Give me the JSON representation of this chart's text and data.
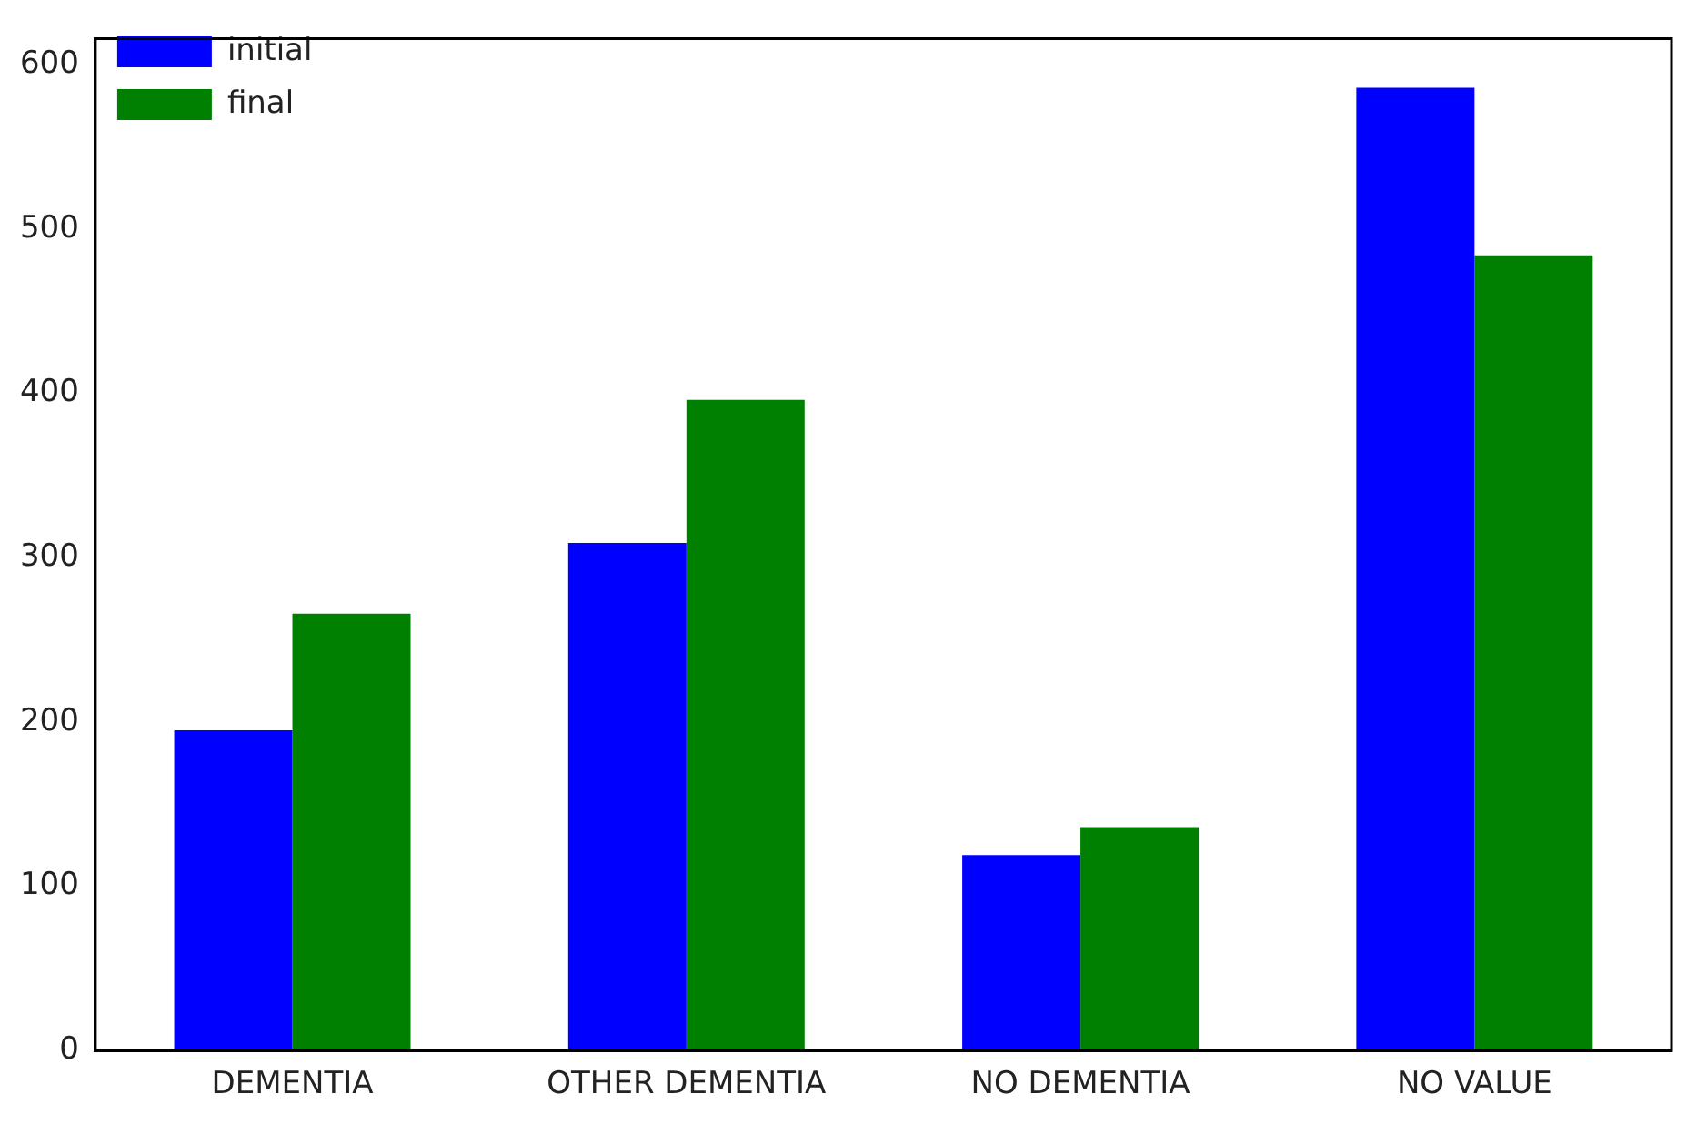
{
  "chart_data": {
    "type": "bar",
    "categories": [
      "DEMENTIA",
      "OTHER DEMENTIA",
      "NO DEMENTIA",
      "NO VALUE"
    ],
    "series": [
      {
        "name": "initial",
        "color": "#0000ff",
        "values": [
          195,
          309,
          119,
          586
        ]
      },
      {
        "name": "final",
        "color": "#008000",
        "values": [
          266,
          396,
          136,
          484
        ]
      }
    ],
    "ylim": [
      0,
      616
    ],
    "yticks": [
      0,
      100,
      200,
      300,
      400,
      500,
      600
    ],
    "grid": false,
    "legend": "top left"
  }
}
